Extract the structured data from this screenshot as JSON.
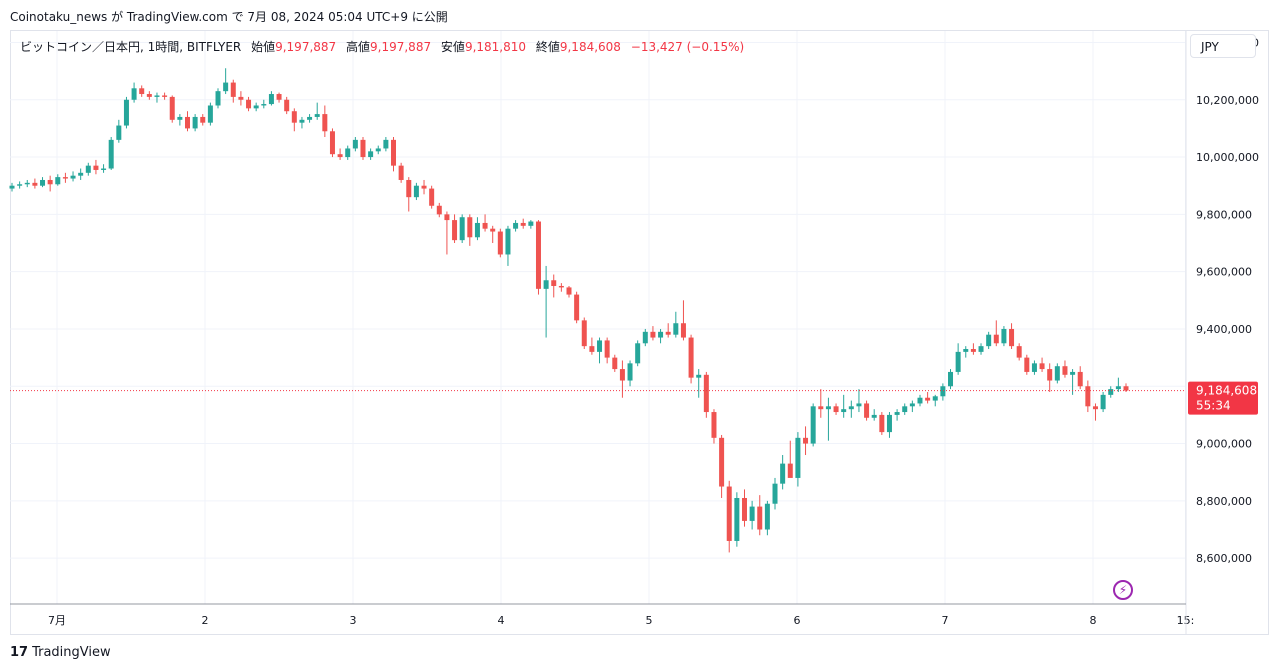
{
  "publish_line": "Coinotaku_news が TradingView.com で 7月 08, 2024 05:04 UTC+9 に公開",
  "legend": {
    "symbol": "ビットコイン／日本円, 1時間, BITFLYER",
    "open_label": "始値",
    "open": "9,197,887",
    "high_label": "高値",
    "high": "9,197,887",
    "low_label": "安値",
    "low": "9,181,810",
    "close_label": "終値",
    "close": "9,184,608",
    "change": "−13,427 (−0.15%)"
  },
  "currency_button": "JPY",
  "footer_brand": "TradingView",
  "footer_brand_mark": "17",
  "alert_icon": "lightning-icon",
  "colors": {
    "up": "#26a69a",
    "down": "#ef5350",
    "grid": "#f0f3fa",
    "price_line": "#f23645",
    "alert": "#9c27b0"
  },
  "chart_data": {
    "type": "candlestick",
    "ylim": [
      8440000,
      10440000
    ],
    "y_ticks": [
      "8,600,000",
      "8,800,000",
      "9,000,000",
      "9,200,000",
      "9,400,000",
      "9,600,000",
      "9,800,000",
      "10,000,000",
      "10,200,000",
      "10,400,000"
    ],
    "y_tick_values": [
      8600000,
      8800000,
      9000000,
      9200000,
      9400000,
      9600000,
      9800000,
      10000000,
      10200000,
      10400000
    ],
    "x_ticks": [
      {
        "label": "7月",
        "hour": 0
      },
      {
        "label": "2",
        "hour": 24
      },
      {
        "label": "3",
        "hour": 48
      },
      {
        "label": "4",
        "hour": 72
      },
      {
        "label": "5",
        "hour": 96
      },
      {
        "label": "6",
        "hour": 120
      },
      {
        "label": "7",
        "hour": 144
      },
      {
        "label": "8",
        "hour": 168
      },
      {
        "label": "15:",
        "hour": 183
      }
    ],
    "last_price": "9,184,608",
    "last_price_value": 9184608,
    "countdown": "55:34",
    "candles": [
      [
        9890000,
        9910000,
        9880000,
        9900000
      ],
      [
        9900000,
        9915000,
        9890000,
        9905000
      ],
      [
        9905000,
        9920000,
        9895000,
        9910000
      ],
      [
        9910000,
        9925000,
        9890000,
        9900000
      ],
      [
        9900000,
        9930000,
        9895000,
        9920000
      ],
      [
        9920000,
        9935000,
        9880000,
        9905000
      ],
      [
        9905000,
        9940000,
        9900000,
        9930000
      ],
      [
        9930000,
        9945000,
        9910000,
        9925000
      ],
      [
        9925000,
        9950000,
        9915000,
        9935000
      ],
      [
        9935000,
        9960000,
        9920000,
        9945000
      ],
      [
        9945000,
        9980000,
        9935000,
        9970000
      ],
      [
        9970000,
        9990000,
        9940000,
        9955000
      ],
      [
        9955000,
        9975000,
        9945000,
        9960000
      ],
      [
        9960000,
        10070000,
        9955000,
        10060000
      ],
      [
        10060000,
        10130000,
        10050000,
        10110000
      ],
      [
        10110000,
        10210000,
        10100000,
        10200000
      ],
      [
        10200000,
        10260000,
        10190000,
        10240000
      ],
      [
        10240000,
        10250000,
        10210000,
        10220000
      ],
      [
        10220000,
        10230000,
        10200000,
        10210000
      ],
      [
        10210000,
        10225000,
        10190000,
        10215000
      ],
      [
        10215000,
        10225000,
        10200000,
        10210000
      ],
      [
        10210000,
        10215000,
        10120000,
        10130000
      ],
      [
        10130000,
        10150000,
        10110000,
        10140000
      ],
      [
        10140000,
        10160000,
        10090000,
        10100000
      ],
      [
        10100000,
        10150000,
        10090000,
        10140000
      ],
      [
        10140000,
        10150000,
        10110000,
        10120000
      ],
      [
        10120000,
        10190000,
        10110000,
        10180000
      ],
      [
        10180000,
        10240000,
        10170000,
        10230000
      ],
      [
        10230000,
        10310000,
        10220000,
        10260000
      ],
      [
        10260000,
        10270000,
        10190000,
        10210000
      ],
      [
        10210000,
        10230000,
        10180000,
        10200000
      ],
      [
        10200000,
        10210000,
        10160000,
        10170000
      ],
      [
        10170000,
        10190000,
        10160000,
        10180000
      ],
      [
        10180000,
        10200000,
        10170000,
        10185000
      ],
      [
        10185000,
        10230000,
        10180000,
        10220000
      ],
      [
        10220000,
        10225000,
        10190000,
        10200000
      ],
      [
        10200000,
        10210000,
        10150000,
        10160000
      ],
      [
        10160000,
        10170000,
        10090000,
        10120000
      ],
      [
        10120000,
        10140000,
        10100000,
        10130000
      ],
      [
        10130000,
        10150000,
        10120000,
        10140000
      ],
      [
        10140000,
        10190000,
        10130000,
        10150000
      ],
      [
        10150000,
        10180000,
        10070000,
        10090000
      ],
      [
        10090000,
        10100000,
        10000000,
        10010000
      ],
      [
        10010000,
        10030000,
        9990000,
        10000000
      ],
      [
        10000000,
        10040000,
        9990000,
        10030000
      ],
      [
        10030000,
        10070000,
        10020000,
        10060000
      ],
      [
        10060000,
        10070000,
        9990000,
        10000000
      ],
      [
        10000000,
        10030000,
        9990000,
        10020000
      ],
      [
        10020000,
        10040000,
        10010000,
        10030000
      ],
      [
        10030000,
        10070000,
        10020000,
        10060000
      ],
      [
        10060000,
        10070000,
        9950000,
        9970000
      ],
      [
        9970000,
        9980000,
        9910000,
        9920000
      ],
      [
        9920000,
        9930000,
        9810000,
        9860000
      ],
      [
        9860000,
        9910000,
        9850000,
        9900000
      ],
      [
        9900000,
        9920000,
        9870000,
        9890000
      ],
      [
        9890000,
        9900000,
        9820000,
        9830000
      ],
      [
        9830000,
        9840000,
        9790000,
        9800000
      ],
      [
        9800000,
        9810000,
        9660000,
        9780000
      ],
      [
        9780000,
        9800000,
        9700000,
        9710000
      ],
      [
        9710000,
        9800000,
        9700000,
        9790000
      ],
      [
        9790000,
        9800000,
        9690000,
        9720000
      ],
      [
        9720000,
        9790000,
        9710000,
        9770000
      ],
      [
        9770000,
        9800000,
        9740000,
        9750000
      ],
      [
        9750000,
        9760000,
        9700000,
        9740000
      ],
      [
        9740000,
        9750000,
        9650000,
        9660000
      ],
      [
        9660000,
        9760000,
        9620000,
        9750000
      ],
      [
        9750000,
        9780000,
        9740000,
        9770000
      ],
      [
        9770000,
        9785000,
        9750000,
        9760000
      ],
      [
        9760000,
        9780000,
        9750000,
        9775000
      ],
      [
        9775000,
        9780000,
        9520000,
        9540000
      ],
      [
        9540000,
        9620000,
        9370000,
        9570000
      ],
      [
        9570000,
        9590000,
        9510000,
        9550000
      ],
      [
        9550000,
        9560000,
        9530000,
        9545000
      ],
      [
        9545000,
        9550000,
        9510000,
        9520000
      ],
      [
        9520000,
        9530000,
        9420000,
        9430000
      ],
      [
        9430000,
        9440000,
        9330000,
        9340000
      ],
      [
        9340000,
        9370000,
        9310000,
        9320000
      ],
      [
        9320000,
        9370000,
        9280000,
        9360000
      ],
      [
        9360000,
        9370000,
        9280000,
        9300000
      ],
      [
        9300000,
        9310000,
        9250000,
        9260000
      ],
      [
        9260000,
        9290000,
        9160000,
        9220000
      ],
      [
        9220000,
        9290000,
        9200000,
        9280000
      ],
      [
        9280000,
        9360000,
        9270000,
        9350000
      ],
      [
        9350000,
        9400000,
        9340000,
        9390000
      ],
      [
        9390000,
        9410000,
        9360000,
        9370000
      ],
      [
        9370000,
        9400000,
        9350000,
        9390000
      ],
      [
        9390000,
        9420000,
        9370000,
        9380000
      ],
      [
        9380000,
        9460000,
        9370000,
        9420000
      ],
      [
        9420000,
        9500000,
        9360000,
        9370000
      ],
      [
        9370000,
        9380000,
        9210000,
        9230000
      ],
      [
        9230000,
        9260000,
        9160000,
        9240000
      ],
      [
        9240000,
        9250000,
        9090000,
        9110000
      ],
      [
        9110000,
        9120000,
        9000000,
        9020000
      ],
      [
        9020000,
        9030000,
        8810000,
        8850000
      ],
      [
        8850000,
        8870000,
        8620000,
        8660000
      ],
      [
        8660000,
        8830000,
        8640000,
        8810000
      ],
      [
        8810000,
        8840000,
        8710000,
        8730000
      ],
      [
        8730000,
        8800000,
        8700000,
        8780000
      ],
      [
        8780000,
        8820000,
        8680000,
        8700000
      ],
      [
        8700000,
        8800000,
        8680000,
        8790000
      ],
      [
        8790000,
        8880000,
        8770000,
        8860000
      ],
      [
        8860000,
        8960000,
        8840000,
        8930000
      ],
      [
        8930000,
        9010000,
        8900000,
        8880000
      ],
      [
        8880000,
        9040000,
        8850000,
        9020000
      ],
      [
        9020000,
        9060000,
        8960000,
        9000000
      ],
      [
        9000000,
        9140000,
        8990000,
        9130000
      ],
      [
        9130000,
        9190000,
        9090000,
        9120000
      ],
      [
        9120000,
        9160000,
        9010000,
        9130000
      ],
      [
        9130000,
        9140000,
        9100000,
        9110000
      ],
      [
        9110000,
        9170000,
        9090000,
        9120000
      ],
      [
        9120000,
        9150000,
        9090000,
        9130000
      ],
      [
        9130000,
        9190000,
        9110000,
        9140000
      ],
      [
        9140000,
        9150000,
        9080000,
        9090000
      ],
      [
        9090000,
        9120000,
        9080000,
        9100000
      ],
      [
        9100000,
        9110000,
        9030000,
        9040000
      ],
      [
        9040000,
        9110000,
        9020000,
        9100000
      ],
      [
        9100000,
        9120000,
        9080000,
        9110000
      ],
      [
        9110000,
        9140000,
        9100000,
        9130000
      ],
      [
        9130000,
        9150000,
        9110000,
        9140000
      ],
      [
        9140000,
        9170000,
        9130000,
        9160000
      ],
      [
        9160000,
        9180000,
        9140000,
        9150000
      ],
      [
        9150000,
        9170000,
        9130000,
        9165000
      ],
      [
        9165000,
        9210000,
        9150000,
        9200000
      ],
      [
        9200000,
        9260000,
        9190000,
        9250000
      ],
      [
        9250000,
        9350000,
        9240000,
        9320000
      ],
      [
        9320000,
        9340000,
        9300000,
        9330000
      ],
      [
        9330000,
        9350000,
        9310000,
        9320000
      ],
      [
        9320000,
        9350000,
        9310000,
        9340000
      ],
      [
        9340000,
        9390000,
        9330000,
        9380000
      ],
      [
        9380000,
        9430000,
        9340000,
        9350000
      ],
      [
        9350000,
        9410000,
        9340000,
        9400000
      ],
      [
        9400000,
        9420000,
        9330000,
        9340000
      ],
      [
        9340000,
        9350000,
        9290000,
        9300000
      ],
      [
        9300000,
        9310000,
        9240000,
        9250000
      ],
      [
        9250000,
        9290000,
        9240000,
        9280000
      ],
      [
        9280000,
        9300000,
        9250000,
        9260000
      ],
      [
        9260000,
        9280000,
        9180000,
        9220000
      ],
      [
        9220000,
        9280000,
        9210000,
        9270000
      ],
      [
        9270000,
        9290000,
        9230000,
        9240000
      ],
      [
        9240000,
        9260000,
        9170000,
        9250000
      ],
      [
        9250000,
        9270000,
        9190000,
        9200000
      ],
      [
        9200000,
        9220000,
        9110000,
        9130000
      ],
      [
        9130000,
        9140000,
        9080000,
        9120000
      ],
      [
        9120000,
        9180000,
        9110000,
        9170000
      ],
      [
        9170000,
        9200000,
        9160000,
        9190000
      ],
      [
        9190000,
        9230000,
        9180000,
        9200000
      ],
      [
        9200000,
        9210000,
        9180000,
        9185000
      ]
    ]
  }
}
